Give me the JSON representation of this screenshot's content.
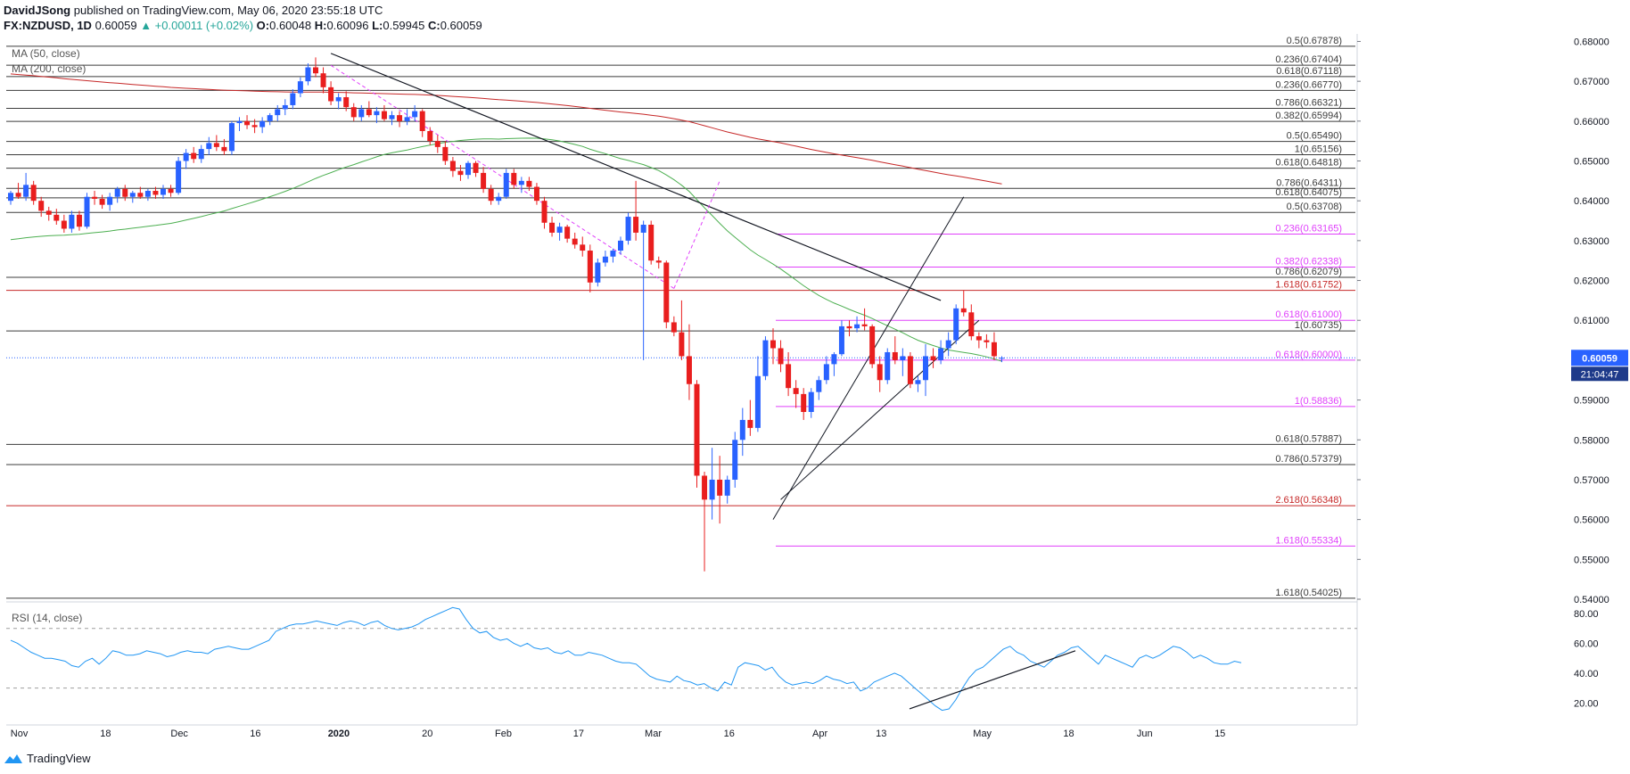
{
  "header": {
    "author": "DavidJSong",
    "published_text": "published on TradingView.com, May 06, 2020 23:55:18 UTC",
    "symbol": "FX:NZDUSD, 1D",
    "last": "0.60059",
    "change": "▲ +0.00011 (+0.02%)",
    "o_label": "O:",
    "o": "0.60048",
    "h_label": "H:",
    "h": "0.60096",
    "l_label": "L:",
    "l": "0.59945",
    "c_label": "C:",
    "c": "0.60059"
  },
  "footer": {
    "brand": "TradingView"
  },
  "colors": {
    "up": "#2962ff",
    "down": "#e91e1e",
    "ma50": "#4caf50",
    "ma200": "#c62828",
    "fib_black": "#3c3c3c",
    "fib_red": "#c62828",
    "fib_magenta": "#e040fb",
    "rsi": "#2196f3",
    "trend": "#131722"
  },
  "chart_data": [
    {
      "type": "candlestick",
      "symbol": "FX:NZDUSD",
      "timeframe": "1D",
      "indicators": [
        "MA (50, close)",
        "MA (200, close)"
      ],
      "ylim": [
        0.54,
        0.681
      ],
      "y_ticks": [
        "0.68000",
        "0.67000",
        "0.66000",
        "0.65000",
        "0.64000",
        "0.63000",
        "0.62000",
        "0.61000",
        "0.60000",
        "0.59000",
        "0.58000",
        "0.57000",
        "0.56000",
        "0.55000",
        "0.54000"
      ],
      "x_ticks": [
        "Nov",
        "18",
        "Dec",
        "16",
        "2020",
        "20",
        "Feb",
        "17",
        "Mar",
        "16",
        "Apr",
        "13",
        "May",
        "18",
        "Jun",
        "15"
      ],
      "last_price": "0.60059",
      "countdown": "21:04:47",
      "candles": [
        [
          0.64,
          0.6425,
          0.639,
          0.642
        ],
        [
          0.642,
          0.6445,
          0.6405,
          0.641
        ],
        [
          0.641,
          0.647,
          0.64,
          0.644
        ],
        [
          0.644,
          0.645,
          0.639,
          0.64
        ],
        [
          0.64,
          0.641,
          0.636,
          0.6375
        ],
        [
          0.6375,
          0.6385,
          0.635,
          0.6365
        ],
        [
          0.6365,
          0.638,
          0.634,
          0.635
        ],
        [
          0.635,
          0.6365,
          0.632,
          0.633
        ],
        [
          0.633,
          0.6375,
          0.632,
          0.6365
        ],
        [
          0.6365,
          0.6375,
          0.6325,
          0.6335
        ],
        [
          0.6335,
          0.642,
          0.633,
          0.641
        ],
        [
          0.641,
          0.6425,
          0.639,
          0.6405
        ],
        [
          0.6405,
          0.6415,
          0.638,
          0.639
        ],
        [
          0.639,
          0.642,
          0.6375,
          0.641
        ],
        [
          0.641,
          0.6435,
          0.6395,
          0.643
        ],
        [
          0.643,
          0.644,
          0.64,
          0.641
        ],
        [
          0.641,
          0.6425,
          0.6395,
          0.642
        ],
        [
          0.642,
          0.6435,
          0.6405,
          0.641
        ],
        [
          0.641,
          0.643,
          0.64,
          0.6425
        ],
        [
          0.6425,
          0.6435,
          0.6405,
          0.6415
        ],
        [
          0.6415,
          0.644,
          0.6405,
          0.643
        ],
        [
          0.643,
          0.644,
          0.641,
          0.642
        ],
        [
          0.642,
          0.651,
          0.6415,
          0.65
        ],
        [
          0.65,
          0.653,
          0.648,
          0.652
        ],
        [
          0.652,
          0.6535,
          0.6495,
          0.6505
        ],
        [
          0.6505,
          0.654,
          0.6495,
          0.653
        ],
        [
          0.653,
          0.656,
          0.6515,
          0.6545
        ],
        [
          0.6545,
          0.6565,
          0.6525,
          0.6535
        ],
        [
          0.6535,
          0.6555,
          0.6515,
          0.6525
        ],
        [
          0.6525,
          0.66,
          0.6515,
          0.6595
        ],
        [
          0.6595,
          0.661,
          0.6575,
          0.66
        ],
        [
          0.66,
          0.6615,
          0.658,
          0.659
        ],
        [
          0.659,
          0.6605,
          0.657,
          0.6585
        ],
        [
          0.6585,
          0.661,
          0.657,
          0.66
        ],
        [
          0.66,
          0.662,
          0.659,
          0.6615
        ],
        [
          0.6615,
          0.664,
          0.66,
          0.663
        ],
        [
          0.663,
          0.6655,
          0.6615,
          0.664
        ],
        [
          0.664,
          0.668,
          0.663,
          0.667
        ],
        [
          0.667,
          0.671,
          0.666,
          0.67
        ],
        [
          0.67,
          0.6745,
          0.669,
          0.6735
        ],
        [
          0.6735,
          0.676,
          0.671,
          0.672
        ],
        [
          0.672,
          0.6735,
          0.667,
          0.6685
        ],
        [
          0.6685,
          0.67,
          0.664,
          0.665
        ],
        [
          0.665,
          0.667,
          0.663,
          0.666
        ],
        [
          0.666,
          0.6675,
          0.6625,
          0.6635
        ],
        [
          0.6635,
          0.6645,
          0.66,
          0.661
        ],
        [
          0.661,
          0.664,
          0.66,
          0.663
        ],
        [
          0.663,
          0.665,
          0.661,
          0.6615
        ],
        [
          0.6615,
          0.6635,
          0.6595,
          0.6625
        ],
        [
          0.6625,
          0.664,
          0.66,
          0.6605
        ],
        [
          0.6605,
          0.6625,
          0.659,
          0.6615
        ],
        [
          0.6615,
          0.6625,
          0.6585,
          0.66
        ],
        [
          0.66,
          0.663,
          0.659,
          0.661
        ],
        [
          0.661,
          0.664,
          0.66,
          0.6625
        ],
        [
          0.6625,
          0.663,
          0.656,
          0.6575
        ],
        [
          0.6575,
          0.6585,
          0.654,
          0.655
        ],
        [
          0.655,
          0.6565,
          0.652,
          0.6535
        ],
        [
          0.6535,
          0.655,
          0.649,
          0.65
        ],
        [
          0.65,
          0.651,
          0.646,
          0.6475
        ],
        [
          0.6475,
          0.649,
          0.645,
          0.6465
        ],
        [
          0.6465,
          0.65,
          0.6455,
          0.6495
        ],
        [
          0.6495,
          0.65,
          0.646,
          0.647
        ],
        [
          0.647,
          0.6485,
          0.642,
          0.643
        ],
        [
          0.643,
          0.644,
          0.639,
          0.64
        ],
        [
          0.64,
          0.642,
          0.639,
          0.641
        ],
        [
          0.641,
          0.648,
          0.6405,
          0.647
        ],
        [
          0.647,
          0.648,
          0.643,
          0.644
        ],
        [
          0.644,
          0.646,
          0.642,
          0.645
        ],
        [
          0.645,
          0.646,
          0.6425,
          0.6435
        ],
        [
          0.6435,
          0.6445,
          0.639,
          0.64
        ],
        [
          0.64,
          0.641,
          0.633,
          0.6345
        ],
        [
          0.6345,
          0.636,
          0.631,
          0.632
        ],
        [
          0.632,
          0.6345,
          0.63,
          0.6335
        ],
        [
          0.6335,
          0.634,
          0.6295,
          0.6305
        ],
        [
          0.6305,
          0.632,
          0.628,
          0.629
        ],
        [
          0.629,
          0.631,
          0.626,
          0.6275
        ],
        [
          0.6275,
          0.629,
          0.617,
          0.6195
        ],
        [
          0.6195,
          0.6255,
          0.6185,
          0.6245
        ],
        [
          0.6245,
          0.6275,
          0.6235,
          0.626
        ],
        [
          0.626,
          0.628,
          0.6245,
          0.6275
        ],
        [
          0.6275,
          0.631,
          0.6265,
          0.63
        ],
        [
          0.63,
          0.637,
          0.629,
          0.636
        ],
        [
          0.636,
          0.645,
          0.63,
          0.632
        ],
        [
          0.632,
          0.635,
          0.6,
          0.634
        ],
        [
          0.634,
          0.635,
          0.624,
          0.625
        ],
        [
          0.625,
          0.626,
          0.623,
          0.6245
        ],
        [
          0.6245,
          0.625,
          0.608,
          0.6095
        ],
        [
          0.6095,
          0.611,
          0.606,
          0.607
        ],
        [
          0.607,
          0.615,
          0.6,
          0.601
        ],
        [
          0.601,
          0.609,
          0.59,
          0.594
        ],
        [
          0.594,
          0.595,
          0.568,
          0.571
        ],
        [
          0.571,
          0.572,
          0.547,
          0.565
        ],
        [
          0.565,
          0.578,
          0.56,
          0.57
        ],
        [
          0.57,
          0.576,
          0.559,
          0.566
        ],
        [
          0.566,
          0.571,
          0.564,
          0.57
        ],
        [
          0.57,
          0.582,
          0.568,
          0.58
        ],
        [
          0.58,
          0.588,
          0.576,
          0.585
        ],
        [
          0.585,
          0.59,
          0.581,
          0.583
        ],
        [
          0.583,
          0.601,
          0.582,
          0.596
        ],
        [
          0.596,
          0.606,
          0.595,
          0.605
        ],
        [
          0.605,
          0.608,
          0.599,
          0.603
        ],
        [
          0.603,
          0.605,
          0.597,
          0.599
        ],
        [
          0.599,
          0.602,
          0.591,
          0.593
        ],
        [
          0.593,
          0.595,
          0.588,
          0.5915
        ],
        [
          0.5915,
          0.593,
          0.585,
          0.587
        ],
        [
          0.587,
          0.593,
          0.5855,
          0.592
        ],
        [
          0.592,
          0.596,
          0.59,
          0.595
        ],
        [
          0.595,
          0.601,
          0.594,
          0.599
        ],
        [
          0.599,
          0.602,
          0.596,
          0.6015
        ],
        [
          0.6015,
          0.61,
          0.601,
          0.6085
        ],
        [
          0.6085,
          0.61,
          0.606,
          0.608
        ],
        [
          0.608,
          0.611,
          0.607,
          0.609
        ],
        [
          0.609,
          0.613,
          0.6075,
          0.6085
        ],
        [
          0.6085,
          0.609,
          0.598,
          0.599
        ],
        [
          0.599,
          0.601,
          0.592,
          0.595
        ],
        [
          0.595,
          0.603,
          0.594,
          0.602
        ],
        [
          0.602,
          0.606,
          0.599,
          0.6
        ],
        [
          0.6,
          0.603,
          0.596,
          0.601
        ],
        [
          0.601,
          0.602,
          0.593,
          0.594
        ],
        [
          0.594,
          0.596,
          0.592,
          0.595
        ],
        [
          0.595,
          0.604,
          0.591,
          0.601
        ],
        [
          0.601,
          0.603,
          0.598,
          0.6
        ],
        [
          0.6,
          0.605,
          0.599,
          0.603
        ],
        [
          0.603,
          0.607,
          0.601,
          0.605
        ],
        [
          0.605,
          0.614,
          0.604,
          0.613
        ],
        [
          0.613,
          0.6175,
          0.611,
          0.612
        ],
        [
          0.612,
          0.614,
          0.605,
          0.606
        ],
        [
          0.606,
          0.607,
          0.603,
          0.605
        ],
        [
          0.605,
          0.6065,
          0.603,
          0.6045
        ],
        [
          0.6045,
          0.607,
          0.6,
          0.601
        ],
        [
          0.6005,
          0.601,
          0.5995,
          0.6006
        ]
      ],
      "fib_levels": [
        {
          "label": "0.5(0.67878)",
          "value": 0.67878,
          "color": "black"
        },
        {
          "label": "0.236(0.67404)",
          "value": 0.67404,
          "color": "black"
        },
        {
          "label": "0.618(0.67118)",
          "value": 0.67118,
          "color": "black"
        },
        {
          "label": "0.236(0.66770)",
          "value": 0.6677,
          "color": "black"
        },
        {
          "label": "0.786(0.66321)",
          "value": 0.66321,
          "color": "black"
        },
        {
          "label": "0.382(0.65994)",
          "value": 0.65994,
          "color": "black"
        },
        {
          "label": "0.5(0.65490)",
          "value": 0.6549,
          "color": "black"
        },
        {
          "label": "1(0.65156)",
          "value": 0.65156,
          "color": "black"
        },
        {
          "label": "0.618(0.64818)",
          "value": 0.64818,
          "color": "black"
        },
        {
          "label": "0.786(0.64311)",
          "value": 0.64311,
          "color": "black"
        },
        {
          "label": "0.618(0.64075)",
          "value": 0.64075,
          "color": "black"
        },
        {
          "label": "0.5(0.63708)",
          "value": 0.63708,
          "color": "black"
        },
        {
          "label": "0.236(0.63165)",
          "value": 0.63165,
          "color": "magenta"
        },
        {
          "label": "0.382(0.62338)",
          "value": 0.62338,
          "color": "magenta"
        },
        {
          "label": "0.786(0.62079)",
          "value": 0.62079,
          "color": "black"
        },
        {
          "label": "1.618(0.61752)",
          "value": 0.61752,
          "color": "red"
        },
        {
          "label": "0.618(0.61000)",
          "value": 0.61,
          "color": "magenta"
        },
        {
          "label": "1(0.60735)",
          "value": 0.60735,
          "color": "black"
        },
        {
          "label": "0.618(0.60000)",
          "value": 0.6,
          "color": "magenta"
        },
        {
          "label": "1(0.58836)",
          "value": 0.58836,
          "color": "magenta"
        },
        {
          "label": "0.618(0.57887)",
          "value": 0.57887,
          "color": "black"
        },
        {
          "label": "0.786(0.57379)",
          "value": 0.57379,
          "color": "black"
        },
        {
          "label": "2.618(0.56348)",
          "value": 0.56348,
          "color": "red"
        },
        {
          "label": "1.618(0.55334)",
          "value": 0.55334,
          "color": "magenta"
        },
        {
          "label": "1.618(0.54025)",
          "value": 0.54025,
          "color": "black"
        }
      ]
    },
    {
      "type": "line",
      "title": "RSI (14, close)",
      "ylim": [
        10,
        86
      ],
      "y_ticks": [
        "80.00",
        "60.00",
        "40.00",
        "20.00"
      ],
      "bands": [
        70,
        30
      ],
      "values": [
        62,
        60,
        57,
        54,
        52,
        50,
        50,
        49,
        48,
        45,
        44,
        48,
        50,
        46,
        50,
        55,
        54,
        52,
        52,
        53,
        55,
        54,
        53,
        51,
        52,
        54,
        55,
        54,
        54,
        53,
        56,
        57,
        58,
        57,
        56,
        56,
        58,
        60,
        62,
        68,
        70,
        72,
        73,
        73,
        74,
        75,
        74,
        73,
        72,
        74,
        75,
        74,
        72,
        74,
        75,
        72,
        70,
        69,
        70,
        71,
        73,
        76,
        78,
        80,
        82,
        84,
        83,
        76,
        70,
        67,
        68,
        64,
        62,
        63,
        60,
        58,
        60,
        57,
        56,
        57,
        54,
        53,
        55,
        52,
        52,
        54,
        53,
        52,
        50,
        48,
        47,
        47,
        46,
        42,
        38,
        36,
        35,
        34,
        38,
        35,
        34,
        32,
        33,
        30,
        28,
        34,
        32,
        44,
        47,
        46,
        45,
        42,
        44,
        38,
        34,
        32,
        33,
        34,
        33,
        35,
        38,
        36,
        35,
        33,
        34,
        28,
        30,
        34,
        36,
        38,
        40,
        38,
        34,
        30,
        26,
        22,
        18,
        15,
        16,
        22,
        30,
        37,
        42,
        44,
        48,
        52,
        56,
        58,
        54,
        52,
        48,
        46,
        44,
        48,
        52,
        54,
        57,
        58,
        54,
        50,
        46,
        52,
        50,
        48,
        46,
        44,
        50,
        52,
        50,
        52,
        55,
        58,
        57,
        54,
        50,
        52,
        50,
        47,
        46,
        46,
        48,
        47
      ]
    }
  ]
}
